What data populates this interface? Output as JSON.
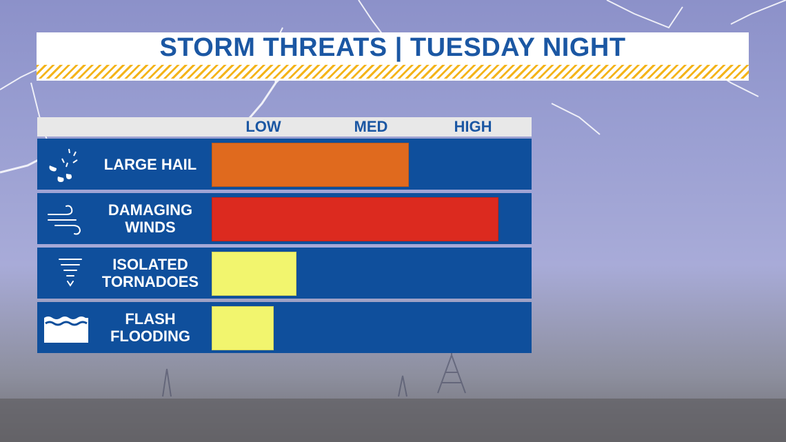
{
  "title": "STORM THREATS | TUESDAY NIGHT",
  "chart_data": {
    "type": "bar",
    "orientation": "horizontal",
    "title": "STORM THREATS | TUESDAY NIGHT",
    "scale_labels": [
      "LOW",
      "MED",
      "HIGH"
    ],
    "categories": [
      "LARGE HAIL",
      "DAMAGING WINDS",
      "ISOLATED TORNADOES",
      "FLASH FLOODING"
    ],
    "values": [
      0.61,
      0.89,
      0.26,
      0.19
    ],
    "value_unit": "fraction of scale (0 = none, 1 = high)",
    "colors": [
      "#e06a1e",
      "#dc2a1f",
      "#f2f56e",
      "#f2f56e"
    ],
    "icons": [
      "hail-icon",
      "wind-icon",
      "tornado-icon",
      "flood-icon"
    ],
    "rows": [
      {
        "label_lines": [
          "LARGE HAIL"
        ],
        "icon": "hail-icon"
      },
      {
        "label_lines": [
          "DAMAGING",
          "WINDS"
        ],
        "icon": "wind-icon"
      },
      {
        "label_lines": [
          "ISOLATED",
          "TORNADOES"
        ],
        "icon": "tornado-icon"
      },
      {
        "label_lines": [
          "FLASH",
          "FLOODING"
        ],
        "icon": "flood-icon"
      }
    ],
    "legend": "none",
    "grid": false
  },
  "colors": {
    "title_text": "#1b57a3",
    "row_background": "#0f4f9c",
    "header_background": "#e8e8e8",
    "stripe": "#f4b41a"
  }
}
